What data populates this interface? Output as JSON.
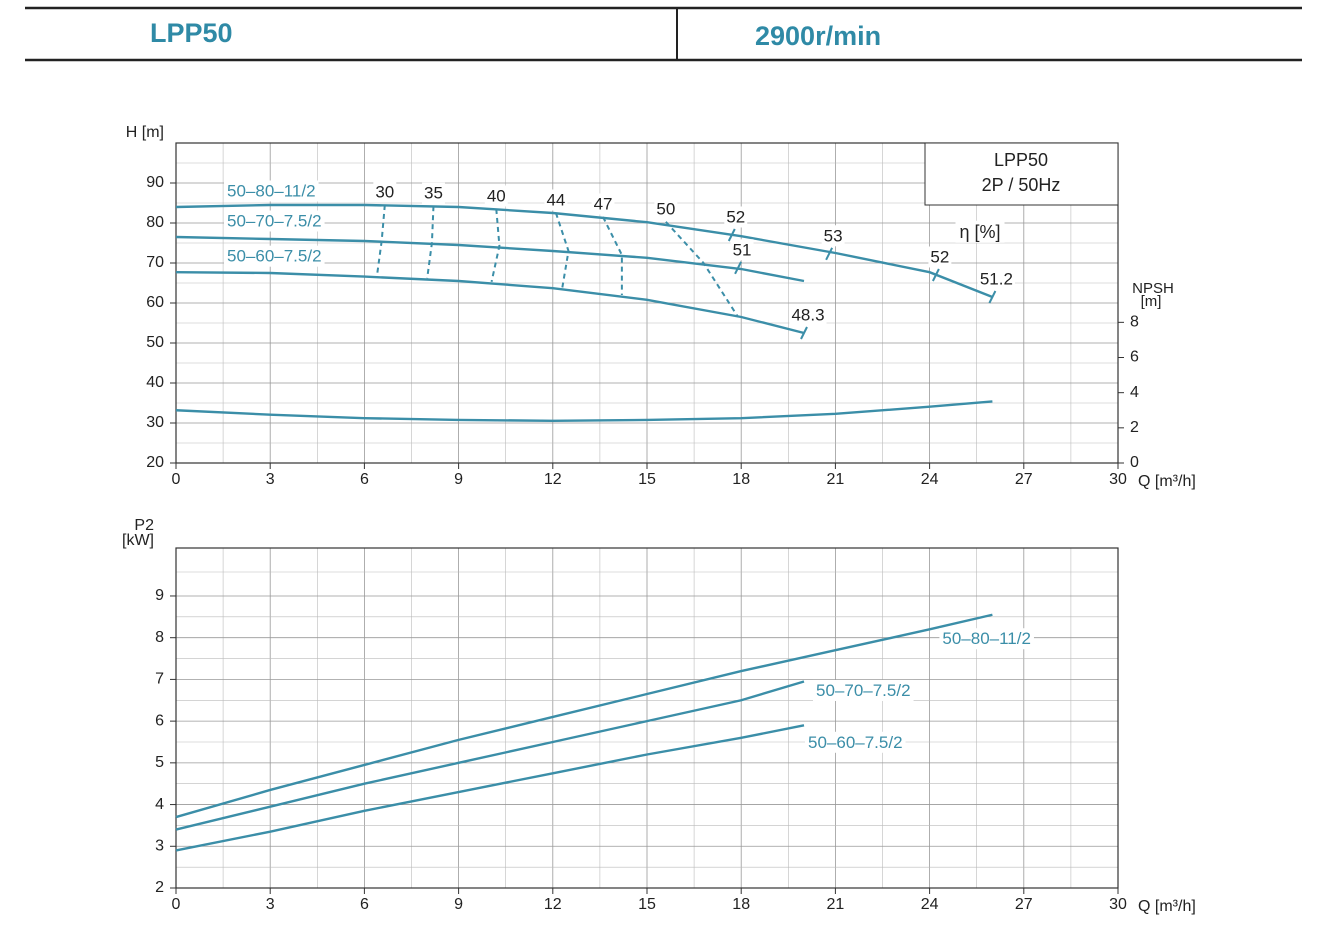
{
  "header": {
    "model": "LPP50",
    "speed": "2900r/min"
  },
  "chart_data": [
    {
      "type": "line",
      "ylabel": "H [m]",
      "xlabel": "Q [m³/h]",
      "y2label": [
        "NPSH",
        "[m]"
      ],
      "xlim": [
        0,
        30
      ],
      "xticks": [
        0,
        3,
        6,
        9,
        12,
        15,
        18,
        21,
        24,
        27,
        30
      ],
      "ylim": [
        20,
        100
      ],
      "yticks": [
        20,
        30,
        40,
        50,
        60,
        70,
        80,
        90
      ],
      "y2lim": [
        0,
        18.2
      ],
      "y2ticks": [
        0,
        2,
        4,
        6,
        8
      ],
      "grid": true,
      "note": [
        "LPP50",
        "2P / 50Hz"
      ],
      "series": [
        {
          "name": "50–80–11/2",
          "color": "#3b8ea8",
          "x": [
            0,
            3,
            6,
            9,
            12,
            15,
            18,
            21,
            24,
            26
          ],
          "values": [
            84,
            84.5,
            84.5,
            84,
            82.5,
            80.2,
            76.7,
            72.5,
            67.7,
            61.5
          ]
        },
        {
          "name": "50–70–7.5/2",
          "color": "#3b8ea8",
          "x": [
            0,
            3,
            6,
            9,
            12,
            15,
            18,
            20
          ],
          "values": [
            76.5,
            76,
            75.5,
            74.5,
            73,
            71.3,
            68.5,
            65.5
          ]
        },
        {
          "name": "50–60–7.5/2",
          "color": "#3b8ea8",
          "x": [
            0,
            3,
            6,
            9,
            12,
            15,
            18,
            20
          ],
          "values": [
            67.7,
            67.5,
            66.6,
            65.5,
            63.7,
            60.8,
            56.5,
            52.5
          ]
        },
        {
          "color": "#3b8ea8",
          "axis": "y2",
          "x": [
            0,
            3,
            6,
            9,
            12,
            15,
            18,
            21,
            24,
            26
          ],
          "values": [
            3.0,
            2.75,
            2.55,
            2.45,
            2.4,
            2.45,
            2.55,
            2.8,
            3.2,
            3.5
          ]
        }
      ],
      "efficiency": {
        "label": "η [%]",
        "lines": [
          {
            "value": 30,
            "x": [
              6.65,
              6.55,
              6.4
            ],
            "y": [
              84.5,
              75.5,
              66.8
            ]
          },
          {
            "value": 35,
            "x": [
              8.2,
              8.15,
              8.0
            ],
            "y": [
              84.2,
              75,
              66.2
            ]
          },
          {
            "value": 40,
            "x": [
              10.2,
              10.3,
              10.05
            ],
            "y": [
              83.5,
              74.3,
              65.3
            ]
          },
          {
            "value": 44,
            "x": [
              12.1,
              12.5,
              12.3
            ],
            "y": [
              82.5,
              73,
              63.7
            ]
          },
          {
            "value": 47,
            "x": [
              13.6,
              14.2,
              14.2
            ],
            "y": [
              81.5,
              72,
              62
            ]
          },
          {
            "value": 50,
            "x": [
              15.6,
              16.8,
              17.9
            ],
            "y": [
              80.3,
              70,
              56.5
            ]
          }
        ],
        "points": [
          {
            "value": 52,
            "x": 17.7,
            "y": 77
          },
          {
            "value": 53,
            "x": 20.8,
            "y": 72.3
          },
          {
            "value": 52,
            "x": 24.2,
            "y": 67
          },
          {
            "value": 51.2,
            "x": 26,
            "y": 61.5
          },
          {
            "value": 51,
            "x": 17.9,
            "y": 68.8
          },
          {
            "value": 48.3,
            "x": 20,
            "y": 52.5
          }
        ]
      }
    },
    {
      "type": "line",
      "ylabel": [
        "P2",
        "[kW]"
      ],
      "xlabel": "Q [m³/h]",
      "xlim": [
        0,
        30
      ],
      "xticks": [
        0,
        3,
        6,
        9,
        12,
        15,
        18,
        21,
        24,
        27,
        30
      ],
      "ylim": [
        2,
        10.15
      ],
      "yticks": [
        2,
        3,
        4,
        5,
        6,
        7,
        8,
        9
      ],
      "grid": true,
      "series": [
        {
          "name": "50–80–11/2",
          "color": "#3b8ea8",
          "x": [
            0,
            3,
            6,
            9,
            12,
            15,
            18,
            21,
            24,
            26
          ],
          "values": [
            3.7,
            4.35,
            4.95,
            5.55,
            6.1,
            6.65,
            7.2,
            7.7,
            8.2,
            8.55
          ]
        },
        {
          "name": "50–70–7.5/2",
          "color": "#3b8ea8",
          "x": [
            0,
            3,
            6,
            9,
            12,
            15,
            18,
            20
          ],
          "values": [
            3.4,
            3.95,
            4.5,
            5.0,
            5.5,
            6.0,
            6.5,
            6.95
          ]
        },
        {
          "name": "50–60–7.5/2",
          "color": "#3b8ea8",
          "x": [
            0,
            3,
            6,
            9,
            12,
            15,
            18,
            20
          ],
          "values": [
            2.9,
            3.35,
            3.85,
            4.3,
            4.75,
            5.2,
            5.6,
            5.9
          ]
        }
      ]
    }
  ]
}
